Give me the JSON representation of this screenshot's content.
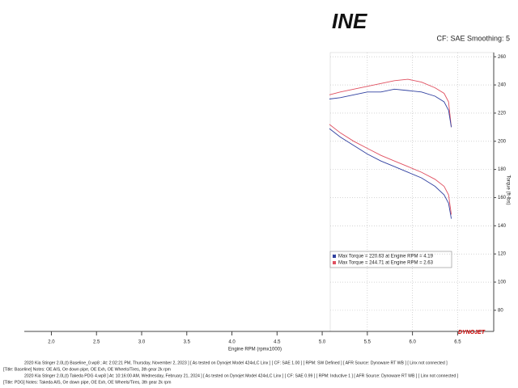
{
  "logo": "INE",
  "settings": "CF: SAE Smoothing: 5",
  "brand": "DYNOJET",
  "chart_data": {
    "type": "line",
    "x_label": "Engine RPM (rpmx1000)",
    "y_label": "Torque (ft-lbs)",
    "xlim": [
      1.7,
      6.9
    ],
    "ylim": [
      65,
      263
    ],
    "xticks": [
      {
        "value": 2,
        "label": "2.0"
      },
      2.5,
      {
        "value": 3,
        "label": "3.0"
      },
      3.5,
      {
        "value": 4,
        "label": "4.0"
      },
      4.5,
      {
        "value": 5,
        "label": "5.0"
      },
      5.5,
      {
        "value": 6,
        "label": "6.0"
      },
      6.5
    ],
    "yticks": [
      80,
      100,
      120,
      140,
      160,
      180,
      200,
      220,
      240,
      260
    ],
    "grid": true,
    "x": [
      5.08,
      5.2,
      5.35,
      5.5,
      5.65,
      5.8,
      5.95,
      6.1,
      6.25,
      6.35,
      6.4,
      6.43
    ],
    "series": [
      {
        "color": "#e05060",
        "values": [
          233,
          235,
          237,
          239,
          241,
          243,
          244,
          242,
          238,
          234,
          228,
          210
        ]
      },
      {
        "color": "#3040a0",
        "values": [
          230,
          231,
          233,
          235,
          235,
          237,
          236,
          235,
          232,
          228,
          222,
          210
        ]
      },
      {
        "name": "Max Torque = 244.71 at Engine RPM = 2.63",
        "color": "#e05060",
        "values": [
          212,
          206,
          200,
          195,
          190,
          186,
          182,
          178,
          173,
          168,
          162,
          148
        ]
      },
      {
        "name": "Max Torque = 220.63 at Engine RPM = 4.19",
        "color": "#3040a0",
        "values": [
          209,
          203,
          197,
          191,
          186,
          182,
          178,
          174,
          168,
          162,
          156,
          145
        ]
      }
    ]
  },
  "notes": [
    "2020 Kia Stinger 2.0L(t) Baseline_0.wp8 ; At: 2:02:21 PM, Thursday, November 2, 2023 ] [ As tested on Dynojet Model 424xLC Linx ] [ CF: SAE 1.00 ] [ RPM: SW Defined ] [ AFR Source: Dynoware RT WB ] [ Linx not connected ]",
    "[Title: Baseline] Notes: OE AIS, Oe down pipe, OE Exh, OE Wheels/Tires, 3th gear 2k rpm",
    "2020 Kia Stinger 2.0L(t) Takeda PDG 4.wp8 ] At: 10:16:00 AM, Wednesday, February 21, 2024 ] [ As tested on Dynojet Model 424xLC Linx ] [ CF: SAE 0.99 ] [ RPM: Inductive 1 ] [ AFR Source: Dynoware RT WB ] [ Linx not connected ]",
    "[Title: PDG] Notes: Takeda AIS, Oe down pipe, OE Exh, OE Wheels/Tires, 3th gear 2k rpm"
  ]
}
